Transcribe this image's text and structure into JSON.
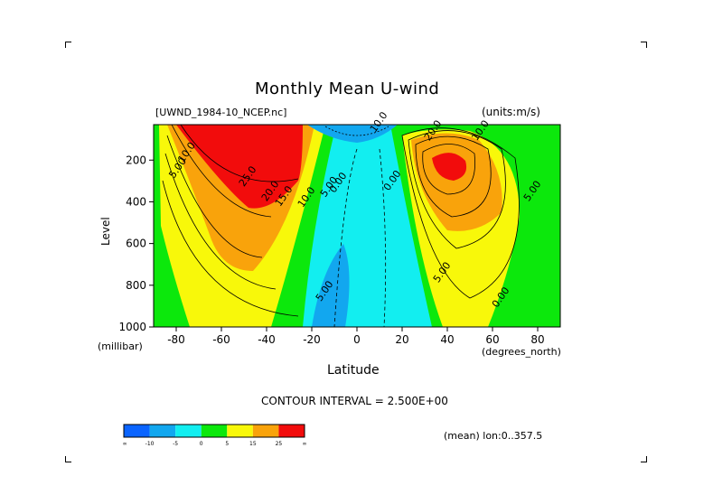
{
  "title": "Monthly Mean U-wind",
  "dataset": "[UWND_1984-10_NCEP.nc]",
  "units": "(units:m/s)",
  "contour_interval": "CONTOUR INTERVAL = 2.500E+00",
  "footer_note": "(mean) lon:0..357.5",
  "colors": {
    "bands": [
      "#0a64ff",
      "#12a7ef",
      "#12eef0",
      "#0ce80c",
      "#f8f80a",
      "#f9a30b",
      "#f20c0c"
    ]
  },
  "colorbar": {
    "labels": [
      "-∞",
      "-10",
      "-5",
      "0",
      "5",
      "15",
      "25",
      "∞"
    ]
  },
  "chart_data": {
    "type": "heatmap",
    "title": "Monthly Mean U-wind",
    "xlabel": "Latitude",
    "xunit": "(degrees_north)",
    "ylabel": "Level",
    "yunit": "(millibar)",
    "xlim": [
      -90,
      90
    ],
    "ylim": [
      1000,
      30
    ],
    "xticks": [
      "-80",
      "-60",
      "-40",
      "-20",
      "0",
      "20",
      "40",
      "60",
      "80"
    ],
    "yticks": [
      "200",
      "400",
      "600",
      "800",
      "1000"
    ],
    "levels_edges": [
      -10,
      -5,
      0,
      5,
      15,
      25
    ],
    "contour_labels": [
      {
        "text": "10.0",
        "x": -77,
        "y": 215
      },
      {
        "text": "5.00",
        "x": -81,
        "y": 290
      },
      {
        "text": "25.0",
        "x": -50,
        "y": 330
      },
      {
        "text": "20.0",
        "x": -40,
        "y": 400
      },
      {
        "text": "15.0",
        "x": -34,
        "y": 425
      },
      {
        "text": "10.0",
        "x": -24,
        "y": 430
      },
      {
        "text": "5.00",
        "x": -14,
        "y": 380
      },
      {
        "text": "0.00",
        "x": -10,
        "y": 360
      },
      {
        "text": "10.0",
        "x": 8,
        "y": 70
      },
      {
        "text": "0.00",
        "x": 14,
        "y": 350
      },
      {
        "text": "10.0",
        "x": 53,
        "y": 110
      },
      {
        "text": "20.0",
        "x": 32,
        "y": 110
      },
      {
        "text": "5.00",
        "x": 36,
        "y": 790
      },
      {
        "text": "5.00",
        "x": -16,
        "y": 880
      },
      {
        "text": "5.00",
        "x": 76,
        "y": 400
      },
      {
        "text": "0.00",
        "x": 62,
        "y": 910
      }
    ]
  }
}
